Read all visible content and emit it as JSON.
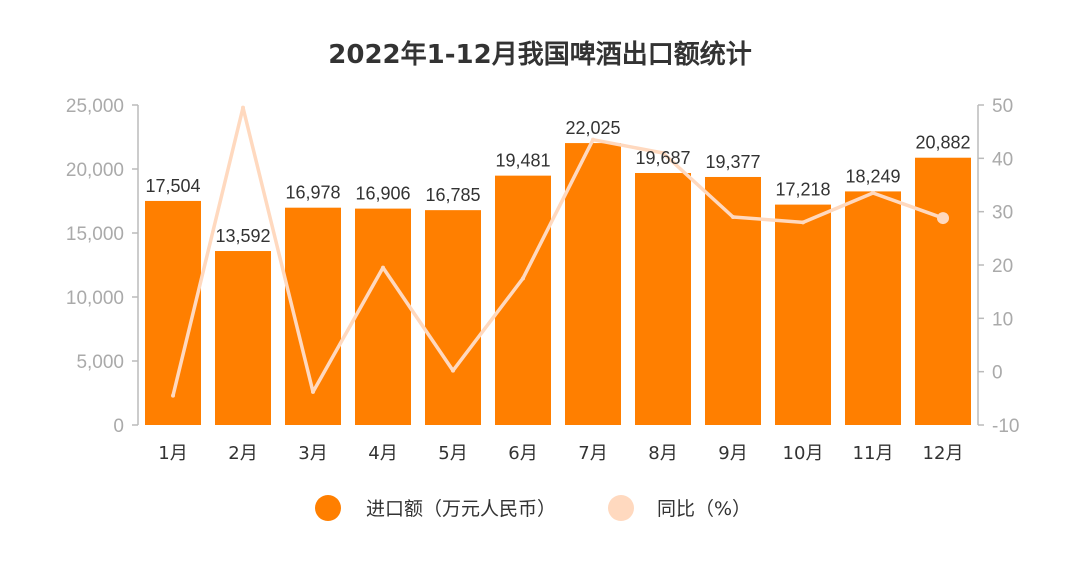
{
  "chart_data": {
    "type": "bar",
    "title": "2022年1-12月我国啤酒出口额统计",
    "categories": [
      "1月",
      "2月",
      "3月",
      "4月",
      "5月",
      "6月",
      "7月",
      "8月",
      "9月",
      "10月",
      "11月",
      "12月"
    ],
    "series": [
      {
        "name": "进口额（万元人民币）",
        "type": "bar",
        "axis": "left",
        "color": "#FF7F00",
        "values": [
          17504,
          13592,
          16978,
          16906,
          16785,
          19481,
          22025,
          19687,
          19377,
          17218,
          18249,
          20882
        ],
        "labels": [
          "17,504",
          "13,592",
          "16,978",
          "16,906",
          "16,785",
          "19,481",
          "22,025",
          "19,687",
          "19,377",
          "17,218",
          "18,249",
          "20,882"
        ]
      },
      {
        "name": "同比（%）",
        "type": "line",
        "axis": "right",
        "color": "#FFD9BF",
        "values": [
          -4.5,
          49.5,
          -3.8,
          19.5,
          0.2,
          17.5,
          43.5,
          41.0,
          29.0,
          28.0,
          33.5,
          28.8
        ]
      }
    ],
    "y_left": {
      "ylim": [
        0,
        25000
      ],
      "ticks": [
        0,
        5000,
        10000,
        15000,
        20000,
        25000
      ],
      "tick_labels": [
        "0",
        "5,000",
        "10,000",
        "15,000",
        "20,000",
        "25,000"
      ]
    },
    "y_right": {
      "ylim": [
        -10,
        50
      ],
      "ticks": [
        -10,
        0,
        10,
        20,
        30,
        40,
        50
      ],
      "tick_labels": [
        "-10",
        "0",
        "10",
        "20",
        "30",
        "40",
        "50"
      ]
    },
    "legend_position": "bottom-center",
    "grid": false
  }
}
